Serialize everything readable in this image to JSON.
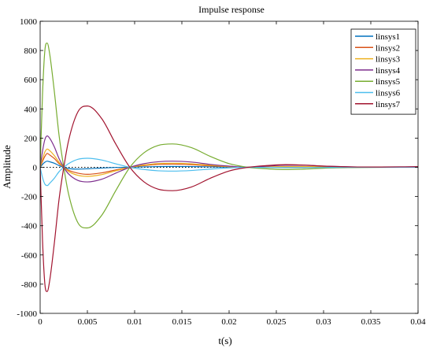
{
  "chart_data": {
    "type": "line",
    "title": "Impulse response",
    "xlabel": "t(s)",
    "ylabel": "Amplitude",
    "xlim": [
      0,
      0.04
    ],
    "ylim": [
      -1000,
      1000
    ],
    "x_ticks": [
      0,
      0.005,
      0.01,
      0.015,
      0.02,
      0.025,
      0.03,
      0.035,
      0.04
    ],
    "x_tick_labels": [
      "0",
      "0.005",
      "0.01",
      "0.015",
      "0.02",
      "0.025",
      "0.03",
      "0.035",
      "0.04"
    ],
    "y_ticks": [
      -1000,
      -800,
      -600,
      -400,
      -200,
      0,
      200,
      400,
      600,
      800,
      1000
    ],
    "y_tick_labels": [
      "-1000",
      "-800",
      "-600",
      "-400",
      "-200",
      "0",
      "200",
      "400",
      "600",
      "800",
      "1000"
    ],
    "grid": false,
    "zero_reference_line": true,
    "legend_position": "top-right",
    "series": [
      {
        "name": "linsys1",
        "color": "#0072BD",
        "x": [
          0,
          0.00025,
          0.0005,
          0.00075,
          0.001,
          0.0015,
          0.002,
          0.0025,
          0.003,
          0.004,
          0.005,
          0.0065,
          0.008,
          0.0095,
          0.011,
          0.0125,
          0.014,
          0.016,
          0.018,
          0.02,
          0.022,
          0.024,
          0.026,
          0.028,
          0.03,
          0.033,
          0.036,
          0.04
        ],
        "y": [
          0,
          20,
          35,
          42,
          38,
          28,
          12,
          0,
          -8,
          -12,
          -10,
          -5,
          -1,
          1,
          3,
          5,
          6,
          5,
          3,
          1,
          0,
          1,
          2,
          2,
          1,
          1,
          1,
          1
        ]
      },
      {
        "name": "linsys2",
        "color": "#D95319",
        "x": [
          0,
          0.00025,
          0.0005,
          0.00075,
          0.001,
          0.0015,
          0.002,
          0.0025,
          0.003,
          0.004,
          0.005,
          0.0065,
          0.008,
          0.0095,
          0.011,
          0.0125,
          0.014,
          0.016,
          0.018,
          0.02,
          0.022,
          0.024,
          0.026,
          0.028,
          0.03,
          0.033,
          0.036,
          0.04
        ],
        "y": [
          0,
          40,
          75,
          95,
          85,
          60,
          25,
          0,
          -20,
          -40,
          -48,
          -38,
          -18,
          0,
          12,
          20,
          22,
          18,
          10,
          4,
          0,
          2,
          4,
          4,
          2,
          1,
          1,
          1
        ]
      },
      {
        "name": "linsys3",
        "color": "#EDB120",
        "x": [
          0,
          0.00025,
          0.0005,
          0.00075,
          0.001,
          0.0015,
          0.002,
          0.0025,
          0.003,
          0.004,
          0.005,
          0.0065,
          0.008,
          0.0095,
          0.011,
          0.0125,
          0.014,
          0.016,
          0.018,
          0.02,
          0.022,
          0.024,
          0.026,
          0.028,
          0.03,
          0.033,
          0.036,
          0.04
        ],
        "y": [
          0,
          55,
          105,
          125,
          115,
          80,
          35,
          0,
          -28,
          -55,
          -62,
          -50,
          -24,
          0,
          16,
          26,
          28,
          24,
          14,
          5,
          0,
          3,
          5,
          5,
          3,
          2,
          1,
          1
        ]
      },
      {
        "name": "linsys4",
        "color": "#7E2F8E",
        "x": [
          0,
          0.00025,
          0.0005,
          0.00075,
          0.001,
          0.0015,
          0.002,
          0.0025,
          0.003,
          0.004,
          0.005,
          0.0065,
          0.008,
          0.0095,
          0.011,
          0.0125,
          0.014,
          0.016,
          0.018,
          0.02,
          0.022,
          0.024,
          0.026,
          0.028,
          0.03,
          0.033,
          0.036,
          0.04
        ],
        "y": [
          0,
          110,
          190,
          215,
          200,
          140,
          60,
          0,
          -45,
          -90,
          -100,
          -82,
          -40,
          0,
          25,
          38,
          42,
          36,
          20,
          8,
          0,
          8,
          14,
          14,
          8,
          3,
          2,
          4
        ]
      },
      {
        "name": "linsys5",
        "color": "#77AC30",
        "x": [
          0,
          0.00025,
          0.0005,
          0.00075,
          0.001,
          0.0015,
          0.002,
          0.0025,
          0.003,
          0.004,
          0.005,
          0.0065,
          0.008,
          0.0095,
          0.011,
          0.0125,
          0.014,
          0.016,
          0.018,
          0.02,
          0.022,
          0.024,
          0.026,
          0.028,
          0.03,
          0.033,
          0.036,
          0.04
        ],
        "y": [
          0,
          500,
          800,
          850,
          780,
          520,
          220,
          0,
          -180,
          -380,
          -415,
          -330,
          -160,
          0,
          100,
          150,
          160,
          135,
          75,
          25,
          0,
          -10,
          -15,
          -12,
          -6,
          -2,
          0,
          1
        ]
      },
      {
        "name": "linsys6",
        "color": "#4DBEEE",
        "x": [
          0,
          0.00025,
          0.0005,
          0.00075,
          0.001,
          0.0015,
          0.002,
          0.0025,
          0.003,
          0.004,
          0.005,
          0.0065,
          0.008,
          0.0095,
          0.011,
          0.0125,
          0.014,
          0.016,
          0.018,
          0.02,
          0.022,
          0.024,
          0.026,
          0.028,
          0.03,
          0.033,
          0.036,
          0.04
        ],
        "y": [
          0,
          -70,
          -115,
          -125,
          -110,
          -75,
          -30,
          0,
          25,
          55,
          62,
          50,
          24,
          0,
          -15,
          -24,
          -26,
          -22,
          -12,
          -4,
          0,
          -1,
          -2,
          -2,
          -1,
          0,
          0,
          0
        ]
      },
      {
        "name": "linsys7",
        "color": "#A2142F",
        "x": [
          0,
          0.00025,
          0.0005,
          0.00075,
          0.001,
          0.0015,
          0.002,
          0.0025,
          0.003,
          0.004,
          0.005,
          0.0065,
          0.008,
          0.0095,
          0.011,
          0.0125,
          0.014,
          0.016,
          0.018,
          0.02,
          0.022,
          0.024,
          0.026,
          0.028,
          0.03,
          0.033,
          0.036,
          0.04
        ],
        "y": [
          0,
          -500,
          -800,
          -850,
          -780,
          -520,
          -220,
          0,
          180,
          380,
          420,
          335,
          160,
          0,
          -100,
          -150,
          -160,
          -135,
          -75,
          -25,
          0,
          12,
          18,
          15,
          8,
          3,
          2,
          4
        ]
      }
    ]
  }
}
